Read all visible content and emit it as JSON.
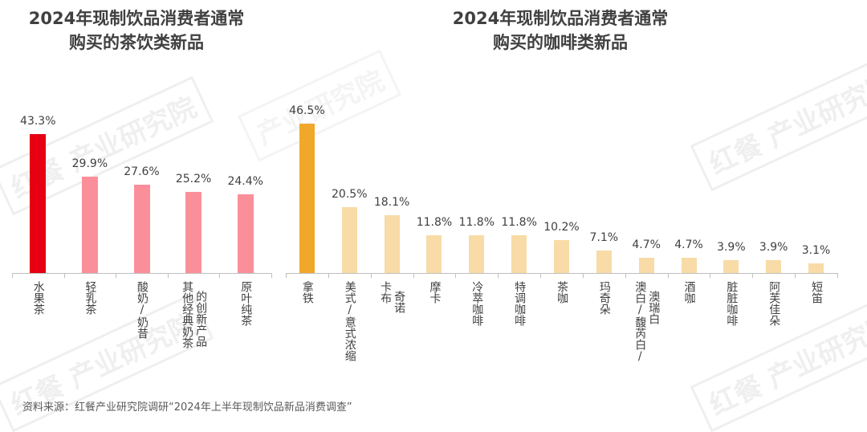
{
  "watermark": "红餐产业研究院",
  "source": "资料来源：红餐产业研究院调研“2024年上半年现制饮品新品消费调查”",
  "chart_data": [
    {
      "type": "bar",
      "title": "2024年现制饮品消费者通常购买的茶饮类新品",
      "title_lines": [
        "2024年现制饮品消费者通常",
        "购买的茶饮类新品"
      ],
      "categories": [
        "水果茶",
        "轻乳茶",
        "酸奶/奶昔",
        "其他经典奶茶的创新产品",
        "原叶纯茶"
      ],
      "category_lines": [
        [
          "水果茶"
        ],
        [
          "轻乳茶"
        ],
        [
          "酸奶/奶昔"
        ],
        [
          "其他经典奶茶",
          "的创新产品"
        ],
        [
          "原叶纯茶"
        ]
      ],
      "values": [
        43.3,
        29.9,
        27.6,
        25.2,
        24.4
      ],
      "value_labels": [
        "43.3%",
        "29.9%",
        "27.6%",
        "25.2%",
        "24.4%"
      ],
      "colors": [
        "#e60012",
        "#fb8f99",
        "#fb8f99",
        "#fb8f99",
        "#fb8f99"
      ],
      "unit": "%",
      "grid": false
    },
    {
      "type": "bar",
      "title": "2024年现制饮品消费者通常购买的咖啡类新品",
      "title_lines": [
        "2024年现制饮品消费者通常",
        "购买的咖啡类新品"
      ],
      "categories": [
        "拿铁",
        "美式/意式浓缩",
        "卡布奇诺",
        "摩卡",
        "冷萃咖啡",
        "特调咖啡",
        "茶咖",
        "玛奇朵",
        "澳白/馥芮白/澳瑞白",
        "酒咖",
        "脏脏咖啡",
        "阿芙佳朵",
        "短笛"
      ],
      "category_lines": [
        [
          "拿铁"
        ],
        [
          "美式/意式浓缩"
        ],
        [
          "卡布",
          "奇诺"
        ],
        [
          "摩卡"
        ],
        [
          "冷萃咖啡"
        ],
        [
          "特调咖啡"
        ],
        [
          "茶咖"
        ],
        [
          "玛奇朵"
        ],
        [
          "澳白/馥芮白/",
          "澳瑞白"
        ],
        [
          "酒咖"
        ],
        [
          "脏脏咖啡"
        ],
        [
          "阿芙佳朵"
        ],
        [
          "短笛"
        ]
      ],
      "values": [
        46.5,
        20.5,
        18.1,
        11.8,
        11.8,
        11.8,
        10.2,
        7.1,
        4.7,
        4.7,
        3.9,
        3.9,
        3.1
      ],
      "value_labels": [
        "46.5%",
        "20.5%",
        "18.1%",
        "11.8%",
        "11.8%",
        "11.8%",
        "10.2%",
        "7.1%",
        "4.7%",
        "4.7%",
        "3.9%",
        "3.9%",
        "3.1%"
      ],
      "colors": [
        "#f0a82a",
        "#f8dba6",
        "#f8dba6",
        "#f8dba6",
        "#f8dba6",
        "#f8dba6",
        "#f8dba6",
        "#f8dba6",
        "#f8dba6",
        "#f8dba6",
        "#f8dba6",
        "#f8dba6",
        "#f8dba6"
      ],
      "unit": "%",
      "grid": false
    }
  ]
}
